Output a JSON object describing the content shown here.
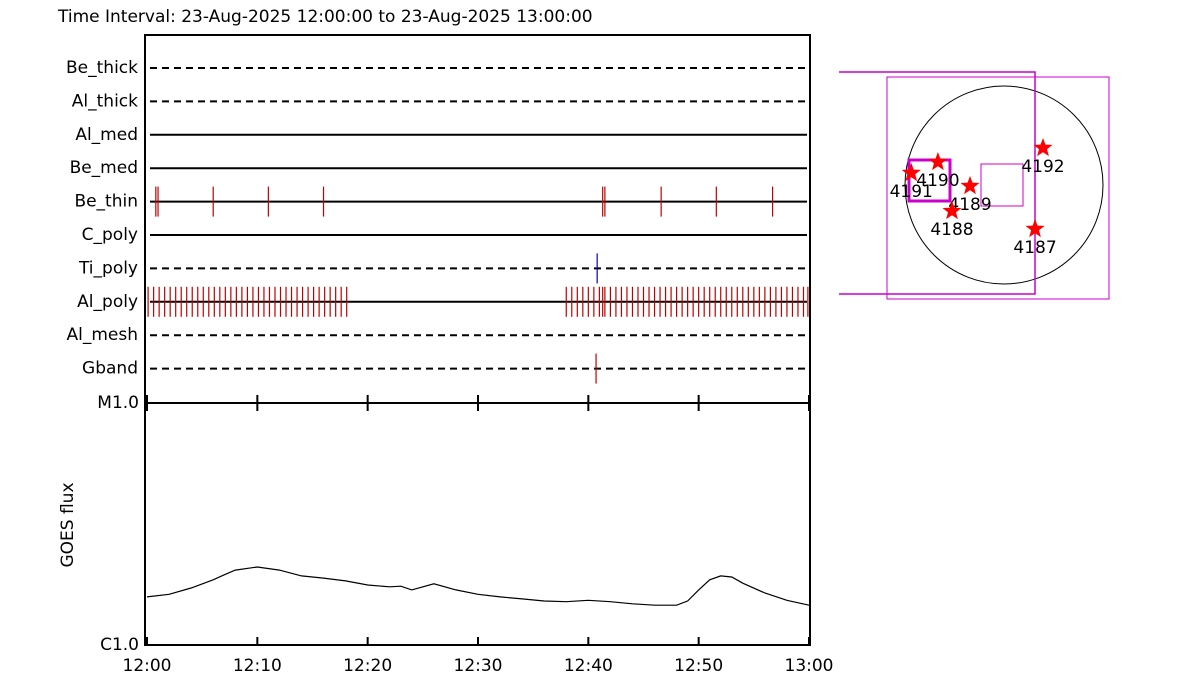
{
  "chart_data": [
    {
      "type": "timeline",
      "title": "Time Interval: 23-Aug-2025 12:00:00 to 23-Aug-2025 13:00:00",
      "xlim": [
        0,
        60
      ],
      "rows": [
        {
          "name": "Be_thick",
          "style": "dashed",
          "color": "#c00000",
          "events": []
        },
        {
          "name": "Al_thick",
          "style": "dashed",
          "color": "#c00000",
          "events": []
        },
        {
          "name": "Al_med",
          "style": "solid",
          "color": "#c00000",
          "events": []
        },
        {
          "name": "Be_med",
          "style": "solid",
          "color": "#c00000",
          "events": []
        },
        {
          "name": "Be_thin",
          "style": "solid",
          "color": "#c00000",
          "events": [
            0.8,
            1.0,
            6.0,
            11.0,
            16.0,
            41.3,
            41.5,
            46.6,
            51.6,
            56.7
          ]
        },
        {
          "name": "C_poly",
          "style": "solid",
          "color": "#c00000",
          "events": []
        },
        {
          "name": "Ti_poly",
          "style": "dashed",
          "color": "#0000c0",
          "events": [
            40.8
          ]
        },
        {
          "name": "Al_poly",
          "style": "solid",
          "color": "#c00000",
          "events": [
            0.1,
            0.6,
            1.1,
            1.6,
            2.1,
            2.6,
            3.1,
            3.6,
            4.1,
            4.6,
            5.1,
            5.6,
            6.1,
            6.6,
            7.1,
            7.6,
            8.1,
            8.6,
            9.1,
            9.6,
            10.1,
            10.6,
            11.1,
            11.6,
            12.1,
            12.6,
            13.1,
            13.6,
            14.1,
            14.6,
            15.1,
            15.6,
            16.1,
            16.6,
            17.1,
            17.6,
            18.1,
            38.0,
            38.5,
            39.0,
            39.5,
            40.0,
            40.5,
            41.0,
            41.3,
            41.5,
            42.0,
            42.5,
            43.0,
            43.5,
            44.0,
            44.5,
            45.0,
            45.5,
            46.0,
            46.5,
            47.0,
            47.5,
            48.0,
            48.5,
            49.0,
            49.5,
            50.0,
            50.5,
            51.0,
            51.5,
            52.0,
            52.5,
            53.0,
            53.5,
            54.0,
            54.5,
            55.0,
            55.5,
            56.0,
            56.5,
            57.0,
            57.5,
            58.0,
            58.5,
            59.0,
            59.5,
            59.9
          ]
        },
        {
          "name": "Al_mesh",
          "style": "dashed",
          "color": "#c00000",
          "events": []
        },
        {
          "name": "Gband",
          "style": "dashed",
          "color": "#c00000",
          "events": [
            40.7
          ]
        }
      ]
    },
    {
      "type": "line",
      "y_label": "GOES flux",
      "log_scale": true,
      "color": "#000000",
      "xlim": [
        0,
        60
      ],
      "xticks": [
        {
          "value": 0,
          "label": "12:00"
        },
        {
          "value": 10,
          "label": "12:10"
        },
        {
          "value": 20,
          "label": "12:20"
        },
        {
          "value": 30,
          "label": "12:30"
        },
        {
          "value": 40,
          "label": "12:40"
        },
        {
          "value": 50,
          "label": "12:50"
        },
        {
          "value": 60,
          "label": "13:00"
        }
      ],
      "ylim": [
        1e-06,
        1e-05
      ],
      "yticks": [
        {
          "value": 1e-06,
          "label": "C1.0"
        },
        {
          "value": 1e-05,
          "label": "M1.0"
        }
      ],
      "x": [
        0,
        2,
        4,
        6,
        7,
        8,
        10,
        12,
        14,
        16,
        18,
        20,
        22,
        23,
        24,
        26,
        28,
        30,
        32,
        34,
        36,
        38,
        40,
        42,
        44,
        46,
        48,
        49,
        50,
        51,
        52,
        53,
        54,
        56,
        58,
        60
      ],
      "values": [
        1.58e-06,
        1.62e-06,
        1.72e-06,
        1.86e-06,
        1.95e-06,
        2.04e-06,
        2.1e-06,
        2.04e-06,
        1.93e-06,
        1.89e-06,
        1.84e-06,
        1.77e-06,
        1.74e-06,
        1.75e-06,
        1.69e-06,
        1.79e-06,
        1.69e-06,
        1.62e-06,
        1.58e-06,
        1.55e-06,
        1.52e-06,
        1.51e-06,
        1.53e-06,
        1.51e-06,
        1.48e-06,
        1.46e-06,
        1.46e-06,
        1.52e-06,
        1.69e-06,
        1.86e-06,
        1.93e-06,
        1.91e-06,
        1.8e-06,
        1.64e-06,
        1.53e-06,
        1.46e-06
      ]
    },
    {
      "type": "scatter",
      "color": "#ff0000",
      "labels": [
        "4191",
        "4190",
        "4189",
        "4188",
        "4192",
        "4187"
      ],
      "x": [
        -890,
        -634,
        -326,
        -499,
        374,
        298
      ],
      "values": [
        115,
        221,
        -10,
        -250,
        355,
        -422
      ]
    }
  ]
}
